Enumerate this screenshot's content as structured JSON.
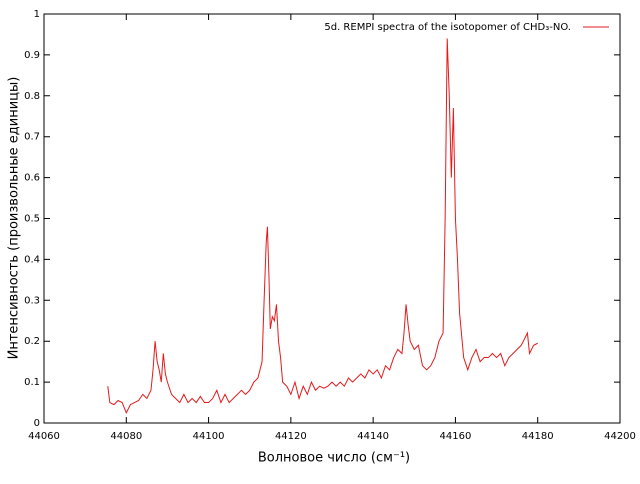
{
  "chart_data": {
    "type": "line",
    "xlabel": "Волновое число (см⁻¹)",
    "ylabel": "Интенсивность (произвольные единицы)",
    "xlim": [
      44060,
      44200
    ],
    "xticks": [
      44060,
      44080,
      44100,
      44120,
      44140,
      44160,
      44180,
      44200
    ],
    "ylim": [
      0,
      1
    ],
    "yticks": [
      0,
      0.1,
      0.2,
      0.3,
      0.4,
      0.5,
      0.6,
      0.7,
      0.8,
      0.9,
      1
    ],
    "grid": false,
    "legend": "top-right",
    "series": [
      {
        "name": "5d. REMPI spectra of the isotopomer of CHD₃-NO.",
        "color": "#e41a1c",
        "x": [
          44075.5,
          44076,
          44077,
          44078,
          44079,
          44080,
          44081,
          44082,
          44083,
          44084,
          44085,
          44086,
          44086.5,
          44087,
          44087.5,
          44088,
          44088.5,
          44089,
          44089.5,
          44090,
          44091,
          44092,
          44093,
          44094,
          44095,
          44096,
          44097,
          44098,
          44099,
          44100,
          44101,
          44102,
          44103,
          44104,
          44105,
          44106,
          44107,
          44108,
          44109,
          44110,
          44111,
          44112,
          44113,
          44113.5,
          44114,
          44114.3,
          44114.7,
          44115,
          44115.5,
          44116,
          44116.5,
          44117,
          44117.5,
          44118,
          44119,
          44120,
          44121,
          44122,
          44123,
          44124,
          44125,
          44126,
          44127,
          44128,
          44129,
          44130,
          44131,
          44132,
          44133,
          44134,
          44135,
          44136,
          44137,
          44138,
          44139,
          44140,
          44141,
          44142,
          44143,
          44144,
          44145,
          44146,
          44147,
          44147.5,
          44148,
          44148.5,
          44149,
          44150,
          44151,
          44152,
          44153,
          44154,
          44155,
          44156,
          44157,
          44157.5,
          44158,
          44158.5,
          44159,
          44159.5,
          44160,
          44160.5,
          44161,
          44162,
          44163,
          44164,
          44165,
          44166,
          44167,
          44168,
          44169,
          44170,
          44171,
          44172,
          44173,
          44174,
          44175,
          44176,
          44177,
          44177.5,
          44178,
          44179,
          44180
        ],
        "values": [
          0.09,
          0.05,
          0.045,
          0.055,
          0.05,
          0.025,
          0.045,
          0.05,
          0.055,
          0.07,
          0.06,
          0.08,
          0.13,
          0.2,
          0.15,
          0.13,
          0.1,
          0.17,
          0.12,
          0.1,
          0.07,
          0.06,
          0.05,
          0.07,
          0.05,
          0.06,
          0.05,
          0.065,
          0.05,
          0.05,
          0.06,
          0.08,
          0.05,
          0.07,
          0.05,
          0.06,
          0.07,
          0.08,
          0.07,
          0.08,
          0.1,
          0.11,
          0.15,
          0.3,
          0.44,
          0.48,
          0.35,
          0.23,
          0.26,
          0.25,
          0.29,
          0.2,
          0.16,
          0.1,
          0.09,
          0.07,
          0.1,
          0.06,
          0.09,
          0.07,
          0.1,
          0.08,
          0.09,
          0.085,
          0.09,
          0.1,
          0.09,
          0.1,
          0.09,
          0.11,
          0.1,
          0.11,
          0.12,
          0.11,
          0.13,
          0.12,
          0.13,
          0.11,
          0.14,
          0.13,
          0.16,
          0.18,
          0.17,
          0.22,
          0.29,
          0.24,
          0.2,
          0.18,
          0.19,
          0.14,
          0.13,
          0.14,
          0.16,
          0.2,
          0.22,
          0.5,
          0.94,
          0.8,
          0.6,
          0.77,
          0.5,
          0.4,
          0.27,
          0.16,
          0.13,
          0.16,
          0.18,
          0.15,
          0.16,
          0.16,
          0.17,
          0.16,
          0.17,
          0.14,
          0.16,
          0.17,
          0.18,
          0.19,
          0.21,
          0.22,
          0.17,
          0.19,
          0.195
        ]
      }
    ]
  }
}
